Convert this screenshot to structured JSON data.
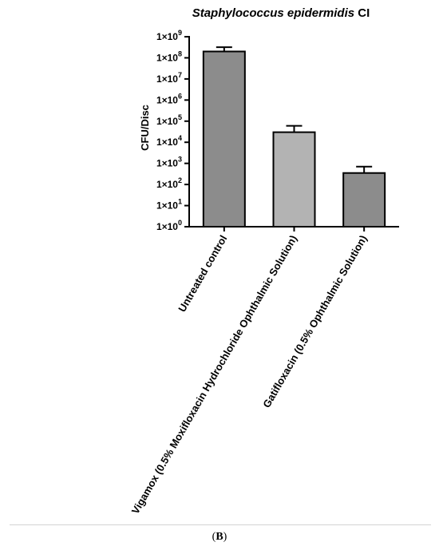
{
  "chart_data": {
    "type": "bar",
    "title_italic": "Staphylococcus epidermidis",
    "title_suffix": " CI",
    "ylabel": "CFU/Disc",
    "xlabel": "",
    "yscale": "log10",
    "ylim": [
      1,
      1000000000
    ],
    "yticks": [
      {
        "value": 1,
        "base": "1×10",
        "exp": "0"
      },
      {
        "value": 10,
        "base": "1×10",
        "exp": "1"
      },
      {
        "value": 100,
        "base": "1×10",
        "exp": "2"
      },
      {
        "value": 1000,
        "base": "1×10",
        "exp": "3"
      },
      {
        "value": 10000,
        "base": "1×10",
        "exp": "4"
      },
      {
        "value": 100000,
        "base": "1×10",
        "exp": "5"
      },
      {
        "value": 1000000,
        "base": "1×10",
        "exp": "6"
      },
      {
        "value": 10000000,
        "base": "1×10",
        "exp": "7"
      },
      {
        "value": 100000000,
        "base": "1×10",
        "exp": "8"
      },
      {
        "value": 1000000000,
        "base": "1×10",
        "exp": "9"
      }
    ],
    "categories": [
      "Untreated control",
      "Vigamox (0.5% Moxifloxacin Hydrochloride Ophthalmic Solution)",
      "Gatifloxacin (0.5% Ophthalmic Solution)"
    ],
    "values": [
      200000000,
      30000.0,
      350
    ],
    "error_upper": [
      320000000,
      60000,
      700
    ],
    "bar_colors": [
      "#8c8c8c",
      "#b3b3b3",
      "#8c8c8c"
    ],
    "grid": false,
    "legend": "none"
  },
  "panel_label": "B"
}
